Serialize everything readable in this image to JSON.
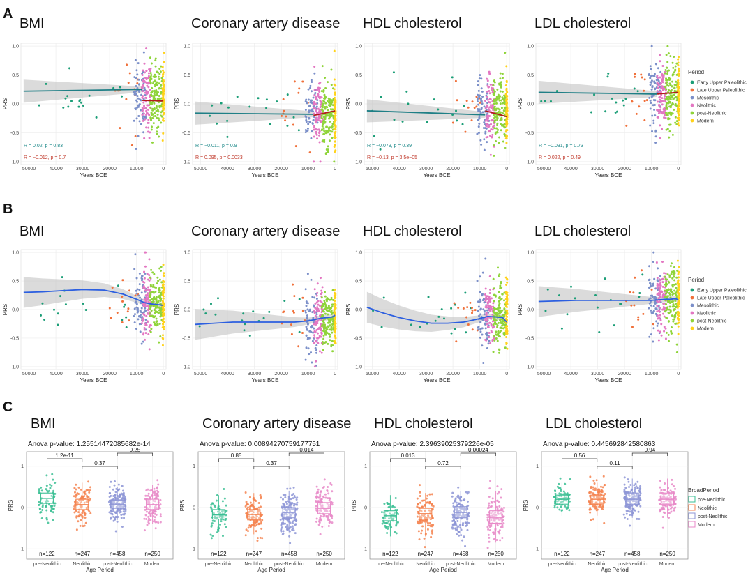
{
  "figure": {
    "panel_letters": [
      "A",
      "B",
      "C"
    ],
    "legend_period": {
      "title": "Period",
      "items": [
        {
          "label": "Early Upper Paleolithic",
          "color": "#1b9e77"
        },
        {
          "label": "Late Upper Paleolithic",
          "color": "#f0703a"
        },
        {
          "label": "Mesolithic",
          "color": "#7b8fc9"
        },
        {
          "label": "Neolithic",
          "color": "#e377c2"
        },
        {
          "label": "post-Neolithic",
          "color": "#8fd43a"
        },
        {
          "label": "Modern",
          "color": "#ffd21a"
        }
      ]
    },
    "legend_broad": {
      "title": "BroadPeriod",
      "items": [
        {
          "label": "pre-Neolithic",
          "color": "#3bbf94"
        },
        {
          "label": "Neolithic",
          "color": "#f4834f"
        },
        {
          "label": "post-Neolithic",
          "color": "#8d95d6"
        },
        {
          "label": "Modern",
          "color": "#e889c8"
        }
      ]
    }
  },
  "chart_data": [
    {
      "type": "scatter",
      "row": "A",
      "titles": [
        "BMI",
        "Coronary artery disease",
        "HDL cholesterol",
        "LDL cholesterol"
      ],
      "xlabel": "Years BCE",
      "ylabel": "PRS",
      "xticks": [
        50000,
        40000,
        30000,
        20000,
        10000,
        0
      ],
      "yticks": [
        1.0,
        0.5,
        0.0,
        -0.5,
        -1.0
      ],
      "ytick_labels": [
        "1.0",
        "0.5",
        "0.0",
        "-0.5",
        "-1.0"
      ],
      "xlim": [
        53000,
        -1000
      ],
      "ylim": [
        -1.05,
        1.05
      ],
      "fit": "linear",
      "stats": [
        {
          "teal": "R = 0.02, p = 0.83",
          "red": "R = −0.012, p = 0.7"
        },
        {
          "teal": "R = −0.011, p = 0.9",
          "red": "R = 0.095, p = 0.0033"
        },
        {
          "teal": "R = −0.079, p = 0.39",
          "red": "R = −0.13, p = 3.5e−05"
        },
        {
          "teal": "R = −0.031, p = 0.73",
          "red": "R = 0.022, p = 0.49"
        }
      ],
      "trend_teal": [
        {
          "x": [
            52000,
            8000
          ],
          "y": [
            0.22,
            0.25
          ]
        },
        {
          "x": [
            52000,
            8000
          ],
          "y": [
            -0.16,
            -0.18
          ]
        },
        {
          "x": [
            52000,
            8000
          ],
          "y": [
            -0.12,
            -0.19
          ]
        },
        {
          "x": [
            52000,
            8000
          ],
          "y": [
            0.2,
            0.17
          ]
        }
      ],
      "trend_red": [
        {
          "x": [
            8000,
            0
          ],
          "y": [
            0.06,
            0.05
          ]
        },
        {
          "x": [
            8000,
            0
          ],
          "y": [
            -0.2,
            -0.12
          ]
        },
        {
          "x": [
            8000,
            0
          ],
          "y": [
            -0.12,
            -0.22
          ]
        },
        {
          "x": [
            8000,
            0
          ],
          "y": [
            0.17,
            0.2
          ]
        }
      ]
    },
    {
      "type": "scatter",
      "row": "B",
      "titles": [
        "BMI",
        "Coronary artery disease",
        "HDL cholesterol",
        "LDL cholesterol"
      ],
      "xlabel": "Years BCE",
      "ylabel": "PRS",
      "xticks": [
        50000,
        40000,
        30000,
        20000,
        10000,
        0
      ],
      "yticks": [
        1.0,
        0.5,
        0.0,
        -0.5,
        -1.0
      ],
      "ytick_labels": [
        "1.0",
        "0.5",
        "0.0",
        "-0.5",
        "-1.0"
      ],
      "xlim": [
        53000,
        -1000
      ],
      "ylim": [
        -1.05,
        1.05
      ],
      "fit": "loess",
      "loess": [
        {
          "x": [
            52000,
            45000,
            38000,
            30000,
            22000,
            15000,
            10000,
            7000,
            5000,
            3000,
            1000,
            0
          ],
          "y": [
            0.3,
            0.31,
            0.33,
            0.35,
            0.34,
            0.27,
            0.18,
            0.12,
            0.1,
            0.09,
            0.08,
            0.07
          ]
        },
        {
          "x": [
            52000,
            45000,
            38000,
            30000,
            22000,
            15000,
            10000,
            7000,
            5000,
            3000,
            1000,
            0
          ],
          "y": [
            -0.26,
            -0.24,
            -0.22,
            -0.22,
            -0.22,
            -0.22,
            -0.2,
            -0.17,
            -0.15,
            -0.14,
            -0.13,
            -0.1
          ]
        },
        {
          "x": [
            52000,
            46000,
            40000,
            34000,
            28000,
            22000,
            16000,
            11000,
            7000,
            4000,
            1500,
            0
          ],
          "y": [
            0.04,
            -0.06,
            -0.14,
            -0.2,
            -0.24,
            -0.24,
            -0.22,
            -0.17,
            -0.12,
            -0.13,
            -0.14,
            -0.22
          ]
        },
        {
          "x": [
            52000,
            45000,
            38000,
            30000,
            22000,
            15000,
            10000,
            7000,
            5000,
            3000,
            1000,
            0
          ],
          "y": [
            0.14,
            0.15,
            0.16,
            0.16,
            0.16,
            0.16,
            0.16,
            0.17,
            0.18,
            0.18,
            0.19,
            0.17
          ]
        }
      ]
    },
    {
      "type": "box",
      "row": "C",
      "titles": [
        "BMI",
        "Coronary artery disease",
        "HDL cholesterol",
        "LDL cholesterol"
      ],
      "anova": [
        "Anova p-value: 1.25514472085682e-14",
        "Anova p-value: 0.00894270759177751",
        "Anova p-value: 2.39639025379226e-05",
        "Anova p-value: 0.445692842580863"
      ],
      "xlabel": "Age Period",
      "ylabel": "PRS",
      "categories": [
        "pre-Neolithic",
        "Neolithic",
        "post-Neolithic",
        "Modern"
      ],
      "n_labels": [
        "n=122",
        "n=247",
        "n=458",
        "n=250"
      ],
      "yticks": [
        1,
        0,
        -1
      ],
      "ytick_labels": [
        "1",
        "0",
        "-1"
      ],
      "ylim": [
        -1.25,
        1.35
      ],
      "comparisons": [
        [
          "1.2e-11",
          "0.37",
          "0.25"
        ],
        [
          "0.85",
          "0.37",
          "0.014"
        ],
        [
          "0.013",
          "0.72",
          "0.00024"
        ],
        [
          "0.56",
          "0.11",
          "0.94"
        ]
      ],
      "boxes": [
        [
          {
            "q1": 0.1,
            "med": 0.22,
            "q3": 0.35,
            "lo": -0.3,
            "hi": 0.75
          },
          {
            "q1": -0.05,
            "med": 0.07,
            "q3": 0.2,
            "lo": -0.45,
            "hi": 0.6
          },
          {
            "q1": -0.02,
            "med": 0.08,
            "q3": 0.18,
            "lo": -0.3,
            "hi": 0.5
          },
          {
            "q1": -0.05,
            "med": 0.07,
            "q3": 0.2,
            "lo": -0.4,
            "hi": 0.55
          }
        ],
        [
          {
            "q1": -0.28,
            "med": -0.18,
            "q3": -0.05,
            "lo": -0.55,
            "hi": 0.3
          },
          {
            "q1": -0.3,
            "med": -0.17,
            "q3": -0.05,
            "lo": -0.65,
            "hi": 0.35
          },
          {
            "q1": -0.25,
            "med": -0.12,
            "q3": 0.0,
            "lo": -0.6,
            "hi": 0.4
          },
          {
            "q1": -0.15,
            "med": -0.02,
            "q3": 0.12,
            "lo": -0.5,
            "hi": 0.45
          }
        ],
        [
          {
            "q1": -0.32,
            "med": -0.2,
            "q3": -0.08,
            "lo": -0.7,
            "hi": 0.3
          },
          {
            "q1": -0.28,
            "med": -0.15,
            "q3": -0.02,
            "lo": -0.7,
            "hi": 0.35
          },
          {
            "q1": -0.25,
            "med": -0.12,
            "q3": 0.02,
            "lo": -0.65,
            "hi": 0.4
          },
          {
            "q1": -0.38,
            "med": -0.25,
            "q3": -0.08,
            "lo": -0.85,
            "hi": 0.4
          }
        ],
        [
          {
            "q1": 0.08,
            "med": 0.2,
            "q3": 0.3,
            "lo": -0.2,
            "hi": 0.6
          },
          {
            "q1": 0.08,
            "med": 0.2,
            "q3": 0.3,
            "lo": -0.2,
            "hi": 0.6
          },
          {
            "q1": 0.08,
            "med": 0.2,
            "q3": 0.35,
            "lo": -0.25,
            "hi": 0.7
          },
          {
            "q1": 0.07,
            "med": 0.2,
            "q3": 0.35,
            "lo": -0.25,
            "hi": 0.7
          }
        ]
      ]
    }
  ]
}
